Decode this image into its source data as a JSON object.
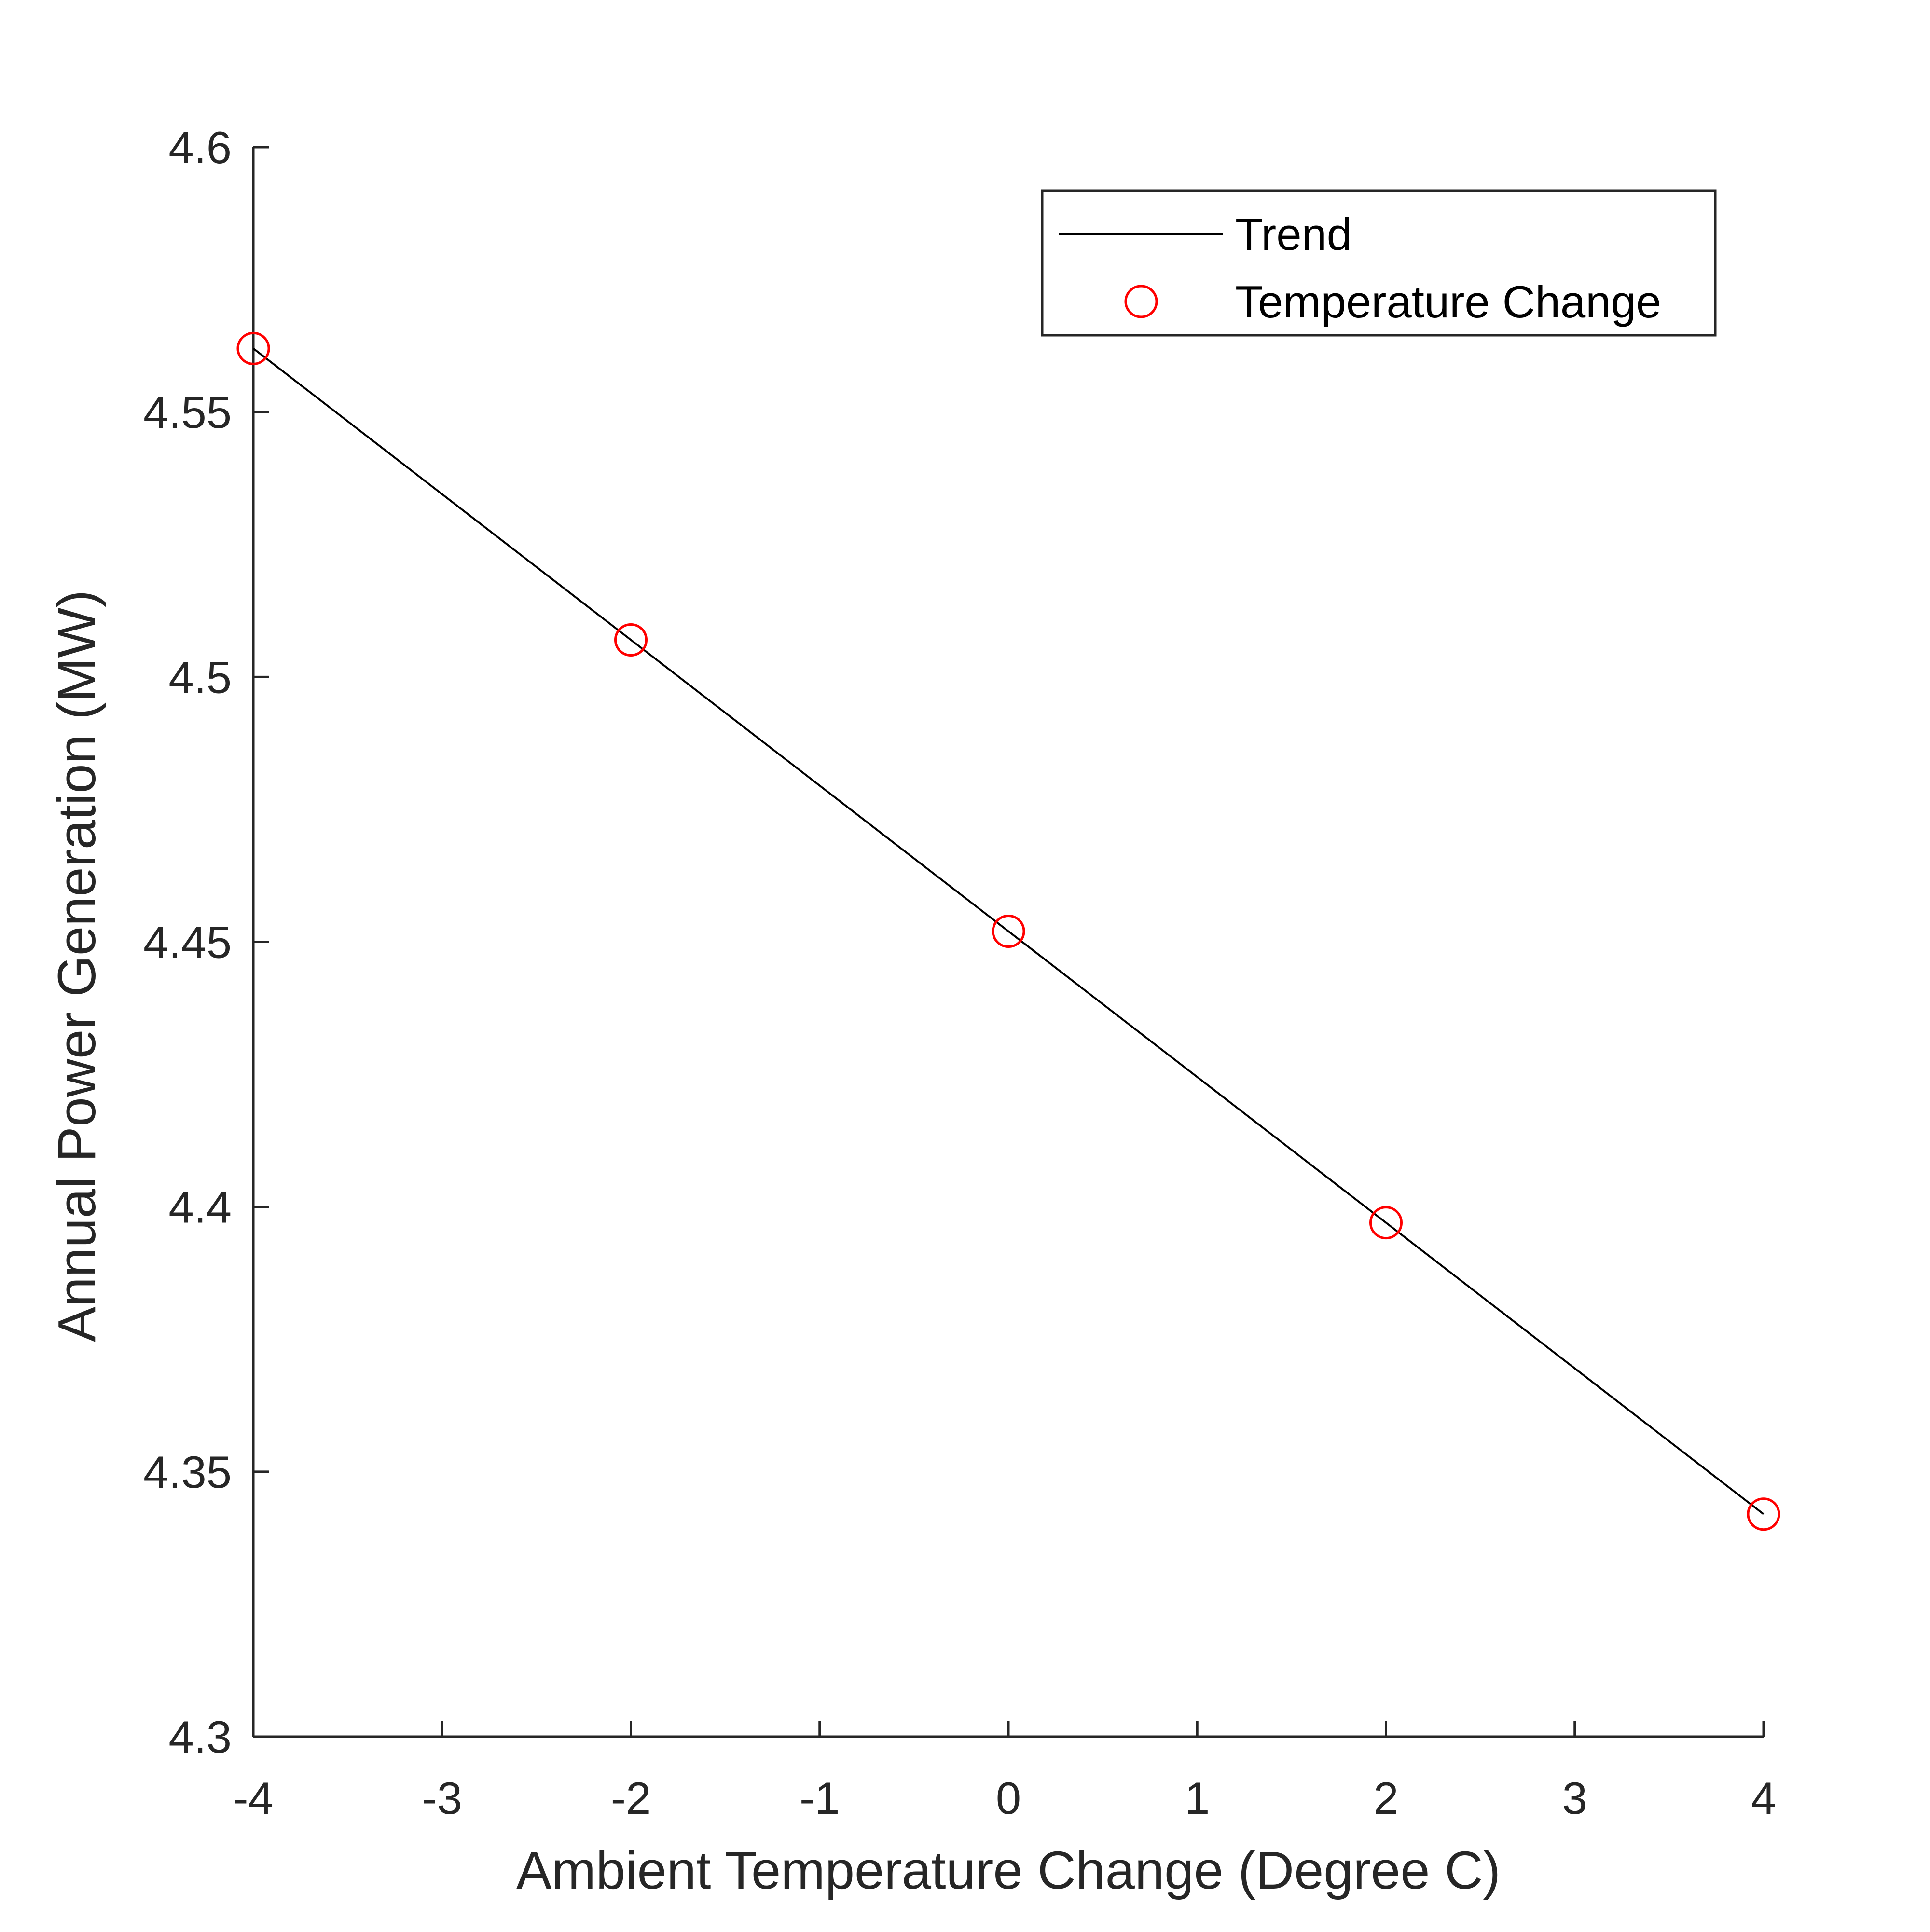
{
  "chart_data": {
    "type": "line",
    "title": "",
    "xlabel": "Ambient Temperature Change (Degree C)",
    "ylabel": "Annual Power Generation (MW)",
    "xlim": [
      -4,
      4
    ],
    "ylim": [
      4.3,
      4.6
    ],
    "xticks": [
      "-4",
      "-3",
      "-2",
      "-1",
      "0",
      "1",
      "2",
      "3",
      "4"
    ],
    "yticks": [
      "4.3",
      "4.35",
      "4.4",
      "4.45",
      "4.5",
      "4.55",
      "4.6"
    ],
    "grid": false,
    "legend_position": "top-right",
    "series": [
      {
        "name": "Trend",
        "style": "line",
        "color": "#000000",
        "x": [
          -4,
          4
        ],
        "y": [
          4.562,
          4.342
        ]
      },
      {
        "name": "Temperature Change",
        "style": "markers",
        "marker": "circle",
        "color": "#ff0000",
        "x": [
          -4,
          -2,
          0,
          2,
          4
        ],
        "y": [
          4.562,
          4.507,
          4.452,
          4.397,
          4.342
        ]
      }
    ]
  }
}
